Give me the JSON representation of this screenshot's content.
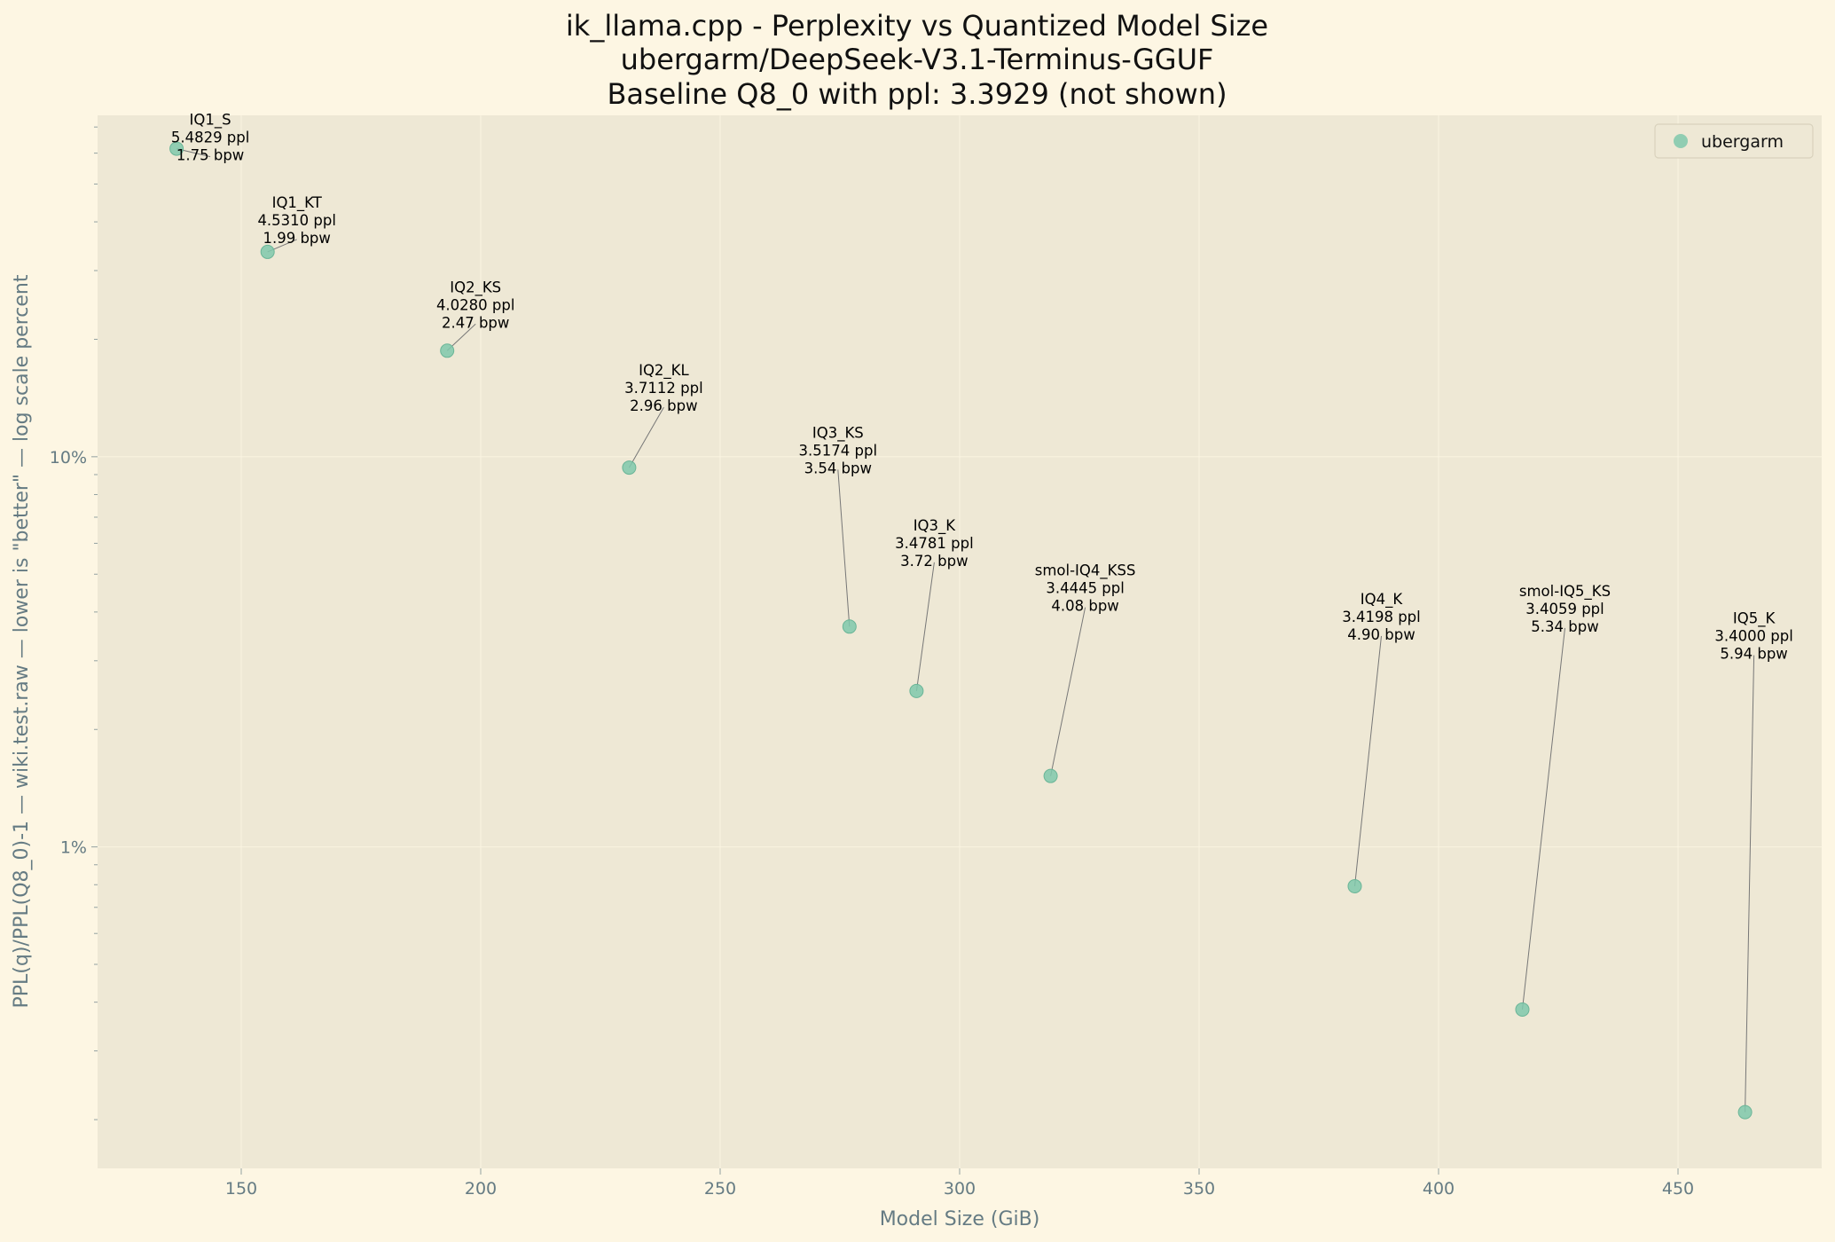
{
  "chart_data": {
    "type": "scatter",
    "title_lines": [
      "ik_llama.cpp - Perplexity vs Quantized Model Size",
      "ubergarm/DeepSeek-V3.1-Terminus-GGUF",
      "Baseline Q8_0 with ppl: 3.3929 (not shown)"
    ],
    "xlabel": "Model Size (GiB)",
    "ylabel": "PPL(q)/PPL(Q8_0)-1 — wiki.test.raw — lower is \"better\" — log scale percent",
    "xlim": [
      120,
      480
    ],
    "ylim": [
      0.0015,
      0.75
    ],
    "yscale": "log",
    "x_ticks": [
      150,
      200,
      250,
      300,
      350,
      400,
      450
    ],
    "y_ticks": [
      {
        "value": 0.01,
        "label": "1%"
      },
      {
        "value": 0.1,
        "label": "10%"
      }
    ],
    "grid": true,
    "legend": {
      "label": "ubergarm",
      "position": "top-right"
    },
    "marker_color": "#7fc8ac",
    "baseline_ppl": 3.3929,
    "series": [
      {
        "name": "ubergarm",
        "points": [
          {
            "name": "IQ1_S",
            "size_gib": 136.5,
            "ppl": "5.4829",
            "bpw": "1.75",
            "y": 0.616
          },
          {
            "name": "IQ1_KT",
            "size_gib": 155.5,
            "ppl": "4.5310",
            "bpw": "1.99",
            "y": 0.335
          },
          {
            "name": "IQ2_KS",
            "size_gib": 193.0,
            "ppl": "4.0280",
            "bpw": "2.47",
            "y": 0.187
          },
          {
            "name": "IQ2_KL",
            "size_gib": 231.0,
            "ppl": "3.7112",
            "bpw": "2.96",
            "y": 0.0938
          },
          {
            "name": "IQ3_KS",
            "size_gib": 277.0,
            "ppl": "3.5174",
            "bpw": "3.54",
            "y": 0.0367
          },
          {
            "name": "IQ3_K",
            "size_gib": 291.0,
            "ppl": "3.4781",
            "bpw": "3.72",
            "y": 0.0251
          },
          {
            "name": "smol-IQ4_KSS",
            "size_gib": 319.0,
            "ppl": "3.4445",
            "bpw": "4.08",
            "y": 0.0152
          },
          {
            "name": "IQ4_K",
            "size_gib": 382.5,
            "ppl": "3.4198",
            "bpw": "4.90",
            "y": 0.00793
          },
          {
            "name": "smol-IQ5_KS",
            "size_gib": 417.5,
            "ppl": "3.4059",
            "bpw": "5.34",
            "y": 0.00383
          },
          {
            "name": "IQ5_K",
            "size_gib": 464.0,
            "ppl": "3.4000",
            "bpw": "5.94",
            "y": 0.00209
          }
        ]
      }
    ]
  }
}
